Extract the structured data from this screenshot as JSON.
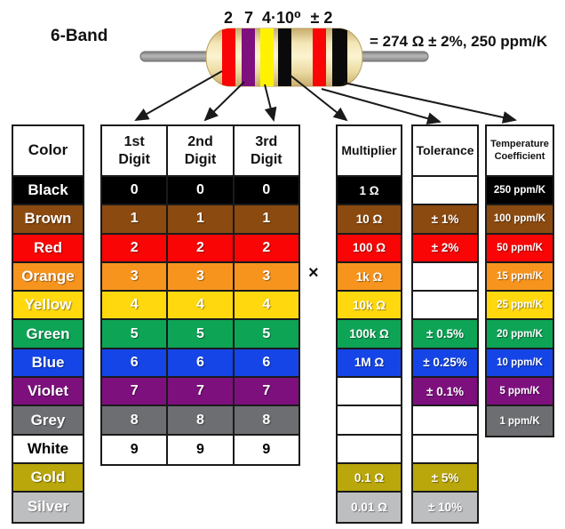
{
  "header": {
    "band_type_label": "6-Band",
    "band_annotations": [
      "2",
      "7",
      "4·10⁰",
      "± 2"
    ],
    "result_text": "= 274 Ω ± 2%, 250 ppm/K"
  },
  "multiply_symbol": "×",
  "resistor": {
    "bands": [
      {
        "color": "red",
        "hex": "#F90505"
      },
      {
        "color": "violet",
        "hex": "#7E107E"
      },
      {
        "color": "yellow",
        "hex": "#FFF200"
      },
      {
        "color": "black",
        "hex": "#0A0A0A"
      },
      {
        "color": "red",
        "hex": "#F90505"
      },
      {
        "color": "black",
        "hex": "#0A0A0A"
      }
    ]
  },
  "table": {
    "color_header": "Color",
    "digit_headers": [
      "1st\nDigit",
      "2nd\nDigit",
      "3rd\nDigit"
    ],
    "multiplier_header": "Multiplier",
    "tolerance_header": "Tolerance",
    "tempco_header": "Temperature\nCoefficient",
    "rows": [
      {
        "key": "black",
        "color": "Black",
        "bg": "#000000",
        "fg": "#FFFFFF",
        "digit": "0",
        "multiplier": "1 Ω",
        "tolerance": "",
        "tempco": "250 ppm/K"
      },
      {
        "key": "brown",
        "color": "Brown",
        "bg": "#8B4A10",
        "fg": "#FFFFFF",
        "digit": "1",
        "multiplier": "10 Ω",
        "tolerance": "± 1%",
        "tempco": "100 ppm/K"
      },
      {
        "key": "red",
        "color": "Red",
        "bg": "#F90505",
        "fg": "#FFFFFF",
        "digit": "2",
        "multiplier": "100 Ω",
        "tolerance": "± 2%",
        "tempco": "50 ppm/K"
      },
      {
        "key": "orange",
        "color": "Orange",
        "bg": "#F7941E",
        "fg": "#FFFFFF",
        "digit": "3",
        "multiplier": "1k Ω",
        "tolerance": "",
        "tempco": "15 ppm/K"
      },
      {
        "key": "yellow",
        "color": "Yellow",
        "bg": "#FFD80E",
        "fg": "#FFFFFF",
        "digit": "4",
        "multiplier": "10k Ω",
        "tolerance": "",
        "tempco": "25 ppm/K"
      },
      {
        "key": "green",
        "color": "Green",
        "bg": "#0EA456",
        "fg": "#FFFFFF",
        "digit": "5",
        "multiplier": "100k Ω",
        "tolerance": "± 0.5%",
        "tempco": "20 ppm/K"
      },
      {
        "key": "blue",
        "color": "Blue",
        "bg": "#1545E6",
        "fg": "#FFFFFF",
        "digit": "6",
        "multiplier": "1M Ω",
        "tolerance": "± 0.25%",
        "tempco": "10 ppm/K"
      },
      {
        "key": "violet",
        "color": "Violet",
        "bg": "#7E107E",
        "fg": "#FFFFFF",
        "digit": "7",
        "multiplier": "",
        "tolerance": "± 0.1%",
        "tempco": "5 ppm/K"
      },
      {
        "key": "grey",
        "color": "Grey",
        "bg": "#6D6E71",
        "fg": "#FFFFFF",
        "digit": "8",
        "multiplier": "",
        "tolerance": "",
        "tempco": "1 ppm/K"
      },
      {
        "key": "white",
        "color": "White",
        "bg": "#FFFFFF",
        "fg": "#000000",
        "digit": "9",
        "multiplier": "",
        "tolerance": "",
        "tempco": null
      },
      {
        "key": "gold",
        "color": "Gold",
        "bg": "#B9A70B",
        "fg": "#FFFFFF",
        "digit": null,
        "multiplier": "0.1 Ω",
        "tolerance": "± 5%",
        "tempco": null
      },
      {
        "key": "silver",
        "color": "Silver",
        "bg": "#BDBEC0",
        "fg": "#FFFFFF",
        "digit": null,
        "multiplier": "0.01 Ω",
        "tolerance": "± 10%",
        "tempco": null
      }
    ]
  }
}
